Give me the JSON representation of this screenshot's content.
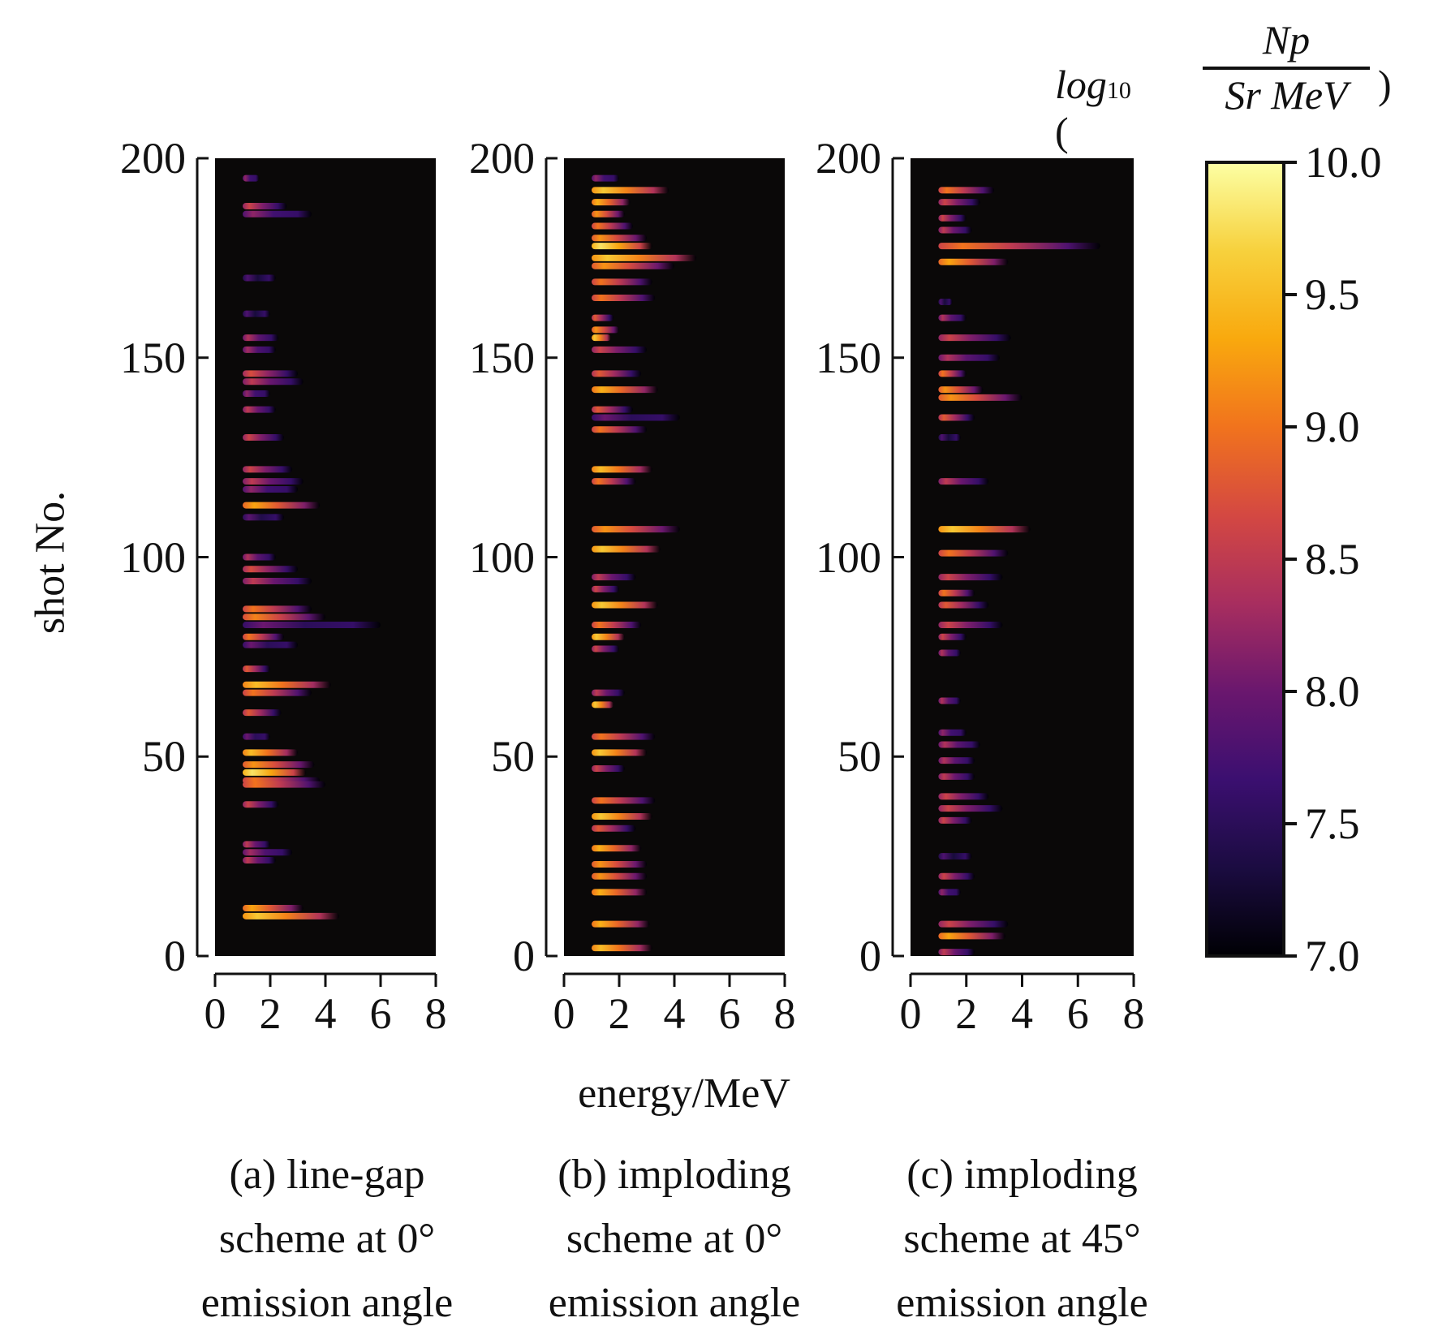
{
  "chart_data": {
    "type": "heatmap",
    "ylabel": "shot No.",
    "xlabel": "energy/MeV",
    "xlim": [
      0,
      8
    ],
    "ylim": [
      0,
      200
    ],
    "xticks": [
      "0",
      "2",
      "4",
      "6",
      "8"
    ],
    "yticks": [
      "0",
      "50",
      "100",
      "150",
      "200"
    ],
    "colorbar": {
      "title_prefix": "log",
      "title_sub": "10",
      "numerator": "Np",
      "denominator": "Sr MeV",
      "range": [
        7.0,
        10.0
      ],
      "ticks": [
        "7.0",
        "7.5",
        "8.0",
        "8.5",
        "9.0",
        "9.5",
        "10.0"
      ],
      "colormap": [
        "#000004",
        "#1b0c41",
        "#3b0f70",
        "#6a176e",
        "#a82e5f",
        "#d44842",
        "#f1731d",
        "#f9a90e",
        "#f7d13d",
        "#fcffa4"
      ]
    },
    "panels": [
      {
        "caption": [
          "(a) line-gap",
          "scheme at 0°",
          "emission angle"
        ],
        "streaks_note": "[shot, max energy MeV, peak log10 value]",
        "streaks": [
          [
            195,
            1.6,
            8.2
          ],
          [
            188,
            2.6,
            8.6
          ],
          [
            186,
            3.5,
            8.2
          ],
          [
            170,
            2.2,
            7.8
          ],
          [
            161,
            2,
            7.8
          ],
          [
            155,
            2.3,
            8.4
          ],
          [
            152,
            2.2,
            8.3
          ],
          [
            146,
            3,
            8.7
          ],
          [
            144,
            3.2,
            8.5
          ],
          [
            141,
            2,
            8.2
          ],
          [
            137,
            2.2,
            8.5
          ],
          [
            130,
            2.5,
            8.6
          ],
          [
            122,
            2.8,
            8.6
          ],
          [
            119,
            3.2,
            8.5
          ],
          [
            117,
            3,
            8.2
          ],
          [
            113,
            3.8,
            9.3
          ],
          [
            110,
            2.5,
            7.9
          ],
          [
            100,
            2.2,
            8.4
          ],
          [
            97,
            3,
            8.7
          ],
          [
            94,
            3.5,
            8.5
          ],
          [
            87,
            3.5,
            9.0
          ],
          [
            85,
            4,
            9.1
          ],
          [
            83,
            6,
            8.0
          ],
          [
            80,
            2.5,
            9.0
          ],
          [
            78,
            3,
            8.0
          ],
          [
            72,
            2,
            8.8
          ],
          [
            68,
            4.2,
            9.5
          ],
          [
            66,
            3.5,
            9.0
          ],
          [
            61,
            2.4,
            8.8
          ],
          [
            55,
            2,
            8.0
          ],
          [
            51,
            3,
            9.5
          ],
          [
            48,
            3.6,
            9.2
          ],
          [
            46,
            3.3,
            9.8
          ],
          [
            44,
            3.8,
            9.0
          ],
          [
            43,
            4,
            9.0
          ],
          [
            38,
            2.3,
            8.6
          ],
          [
            28,
            2,
            8.5
          ],
          [
            26,
            2.8,
            8.3
          ],
          [
            24,
            2.2,
            8.5
          ],
          [
            12,
            3.2,
            9.3
          ],
          [
            10,
            4.5,
            9.6
          ]
        ]
      },
      {
        "caption": [
          "(b) imploding",
          "scheme at 0°",
          "emission angle"
        ],
        "streaks": [
          [
            195,
            2,
            8.2
          ],
          [
            192,
            3.8,
            9.6
          ],
          [
            189,
            2.4,
            9.4
          ],
          [
            186,
            2.2,
            9.2
          ],
          [
            183,
            2.5,
            9.0
          ],
          [
            180,
            3,
            9.2
          ],
          [
            178,
            3.2,
            9.8
          ],
          [
            175,
            4.8,
            9.6
          ],
          [
            173,
            4,
            9.2
          ],
          [
            169,
            3.2,
            9.0
          ],
          [
            165,
            3.3,
            9.0
          ],
          [
            160,
            1.8,
            8.8
          ],
          [
            157,
            2,
            9.2
          ],
          [
            155,
            1.7,
            9.6
          ],
          [
            152,
            3,
            8.6
          ],
          [
            146,
            2.8,
            8.8
          ],
          [
            142,
            3.4,
            9.4
          ],
          [
            137,
            2.5,
            8.8
          ],
          [
            135,
            4.2,
            8.0
          ],
          [
            132,
            3,
            9.0
          ],
          [
            122,
            3.2,
            9.5
          ],
          [
            119,
            2.6,
            9.0
          ],
          [
            107,
            4.2,
            9.2
          ],
          [
            102,
            3.5,
            9.6
          ],
          [
            95,
            2.6,
            8.5
          ],
          [
            92,
            2,
            8.6
          ],
          [
            88,
            3.4,
            9.6
          ],
          [
            83,
            2.8,
            9.0
          ],
          [
            80,
            2.2,
            9.6
          ],
          [
            77,
            2,
            8.6
          ],
          [
            66,
            2.2,
            8.5
          ],
          [
            63,
            1.8,
            9.6
          ],
          [
            55,
            3.3,
            9.0
          ],
          [
            51,
            3,
            9.6
          ],
          [
            47,
            2.2,
            8.6
          ],
          [
            39,
            3.3,
            9.0
          ],
          [
            35,
            3.2,
            9.6
          ],
          [
            32,
            2.6,
            8.8
          ],
          [
            27,
            2.8,
            9.4
          ],
          [
            23,
            3,
            9.2
          ],
          [
            20,
            3,
            9.2
          ],
          [
            16,
            3,
            9.4
          ],
          [
            8,
            3.1,
            9.4
          ],
          [
            2,
            3.2,
            9.5
          ]
        ]
      },
      {
        "caption": [
          "(c) imploding",
          "scheme at 45°",
          "emission angle"
        ],
        "streaks": [
          [
            192,
            3,
            9.0
          ],
          [
            189,
            2.5,
            8.6
          ],
          [
            185,
            2,
            8.6
          ],
          [
            182,
            2.2,
            8.5
          ],
          [
            178,
            6.8,
            9.0
          ],
          [
            174,
            3.5,
            9.3
          ],
          [
            164,
            1.5,
            7.8
          ],
          [
            160,
            2,
            8.4
          ],
          [
            155,
            3.6,
            8.6
          ],
          [
            150,
            3.2,
            8.4
          ],
          [
            146,
            2,
            9.0
          ],
          [
            142,
            2.6,
            9.2
          ],
          [
            140,
            4,
            9.2
          ],
          [
            135,
            2.3,
            8.8
          ],
          [
            130,
            1.8,
            7.8
          ],
          [
            119,
            2.8,
            8.5
          ],
          [
            107,
            4.3,
            9.6
          ],
          [
            101,
            3.5,
            9.0
          ],
          [
            95,
            3.3,
            8.6
          ],
          [
            91,
            2.3,
            9.0
          ],
          [
            88,
            2.8,
            8.8
          ],
          [
            83,
            3.3,
            8.6
          ],
          [
            80,
            2,
            8.6
          ],
          [
            76,
            1.8,
            8.4
          ],
          [
            64,
            1.8,
            8.4
          ],
          [
            56,
            2,
            8.2
          ],
          [
            53,
            2.5,
            8.4
          ],
          [
            49,
            2.3,
            8.4
          ],
          [
            45,
            2.3,
            8.5
          ],
          [
            40,
            2.8,
            8.6
          ],
          [
            37,
            3.3,
            8.6
          ],
          [
            34,
            2.2,
            8.6
          ],
          [
            25,
            2.2,
            7.8
          ],
          [
            20,
            2.3,
            8.6
          ],
          [
            16,
            1.8,
            8.2
          ],
          [
            8,
            3.5,
            8.6
          ],
          [
            5,
            3.4,
            9.3
          ],
          [
            1,
            2.3,
            8.5
          ]
        ]
      }
    ]
  }
}
